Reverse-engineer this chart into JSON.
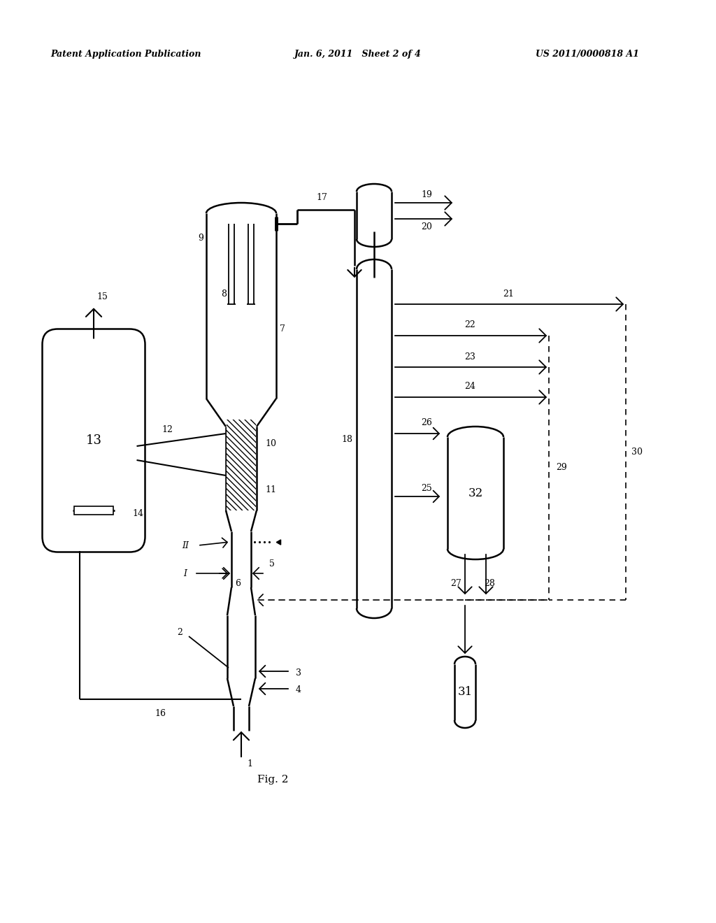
{
  "title_left": "Patent Application Publication",
  "title_mid": "Jan. 6, 2011   Sheet 2 of 4",
  "title_right": "US 2011/0000818 A1",
  "fig_label": "Fig. 2",
  "bg_color": "#ffffff",
  "lc": "#000000"
}
